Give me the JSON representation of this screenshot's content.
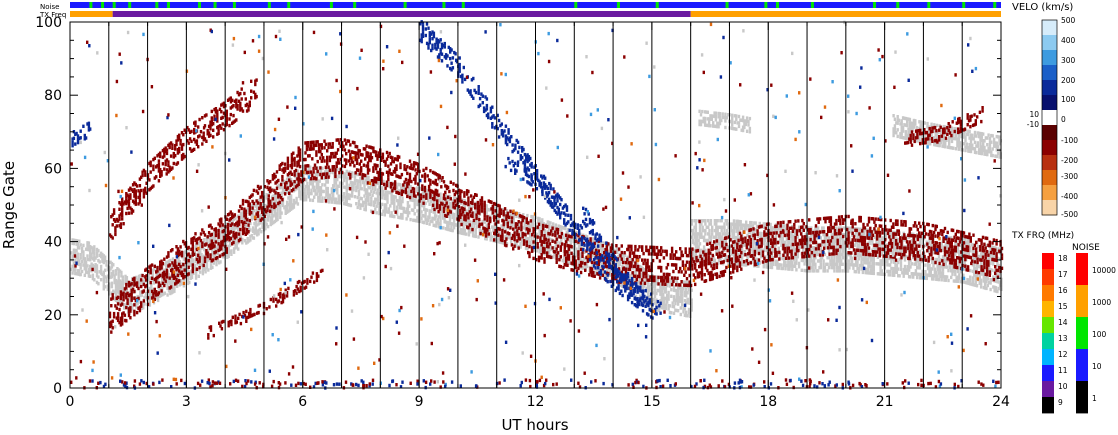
{
  "strips": {
    "noise_label": "Noise",
    "txfreq_label": "TX Freq"
  },
  "chart_data": {
    "type": "heatmap",
    "title": "",
    "xlabel": "UT hours",
    "ylabel": "Range Gate",
    "xlim": [
      0,
      24
    ],
    "ylim": [
      0,
      100
    ],
    "x_ticks": [
      "0",
      "3",
      "6",
      "9",
      "12",
      "15",
      "18",
      "21",
      "24"
    ],
    "y_ticks": [
      "0",
      "20",
      "40",
      "60",
      "80",
      "100"
    ],
    "hour_gridlines": [
      1,
      2,
      3,
      4,
      5,
      6,
      7,
      8,
      9,
      10,
      11,
      12,
      13,
      14,
      15,
      16,
      17,
      18,
      19,
      20,
      21,
      22,
      23
    ],
    "ground_scatter_color": "#c8c8c8",
    "velocity_scale": {
      "title": "VELO (km/s)",
      "ticks": [
        "500",
        "400",
        "300",
        "200",
        "100",
        "10",
        "0",
        "-10",
        "-100",
        "-200",
        "-300",
        "-400",
        "-500"
      ],
      "colors_top_to_bottom": [
        "#d6ecfa",
        "#8ccaf0",
        "#3d9be0",
        "#1a5fc8",
        "#0a2a9a",
        "#08106e",
        "#ffffff",
        "#5a0000",
        "#8b0000",
        "#b83010",
        "#e06a10",
        "#f5a040",
        "#f8d4a8"
      ]
    },
    "txfreq_scale": {
      "title": "TX FRQ (MHz)",
      "ticks": [
        "18",
        "17",
        "16",
        "15",
        "14",
        "13",
        "12",
        "11",
        "10",
        "9"
      ],
      "colors": [
        "#ff0000",
        "#ff3a00",
        "#ff7a00",
        "#ffb400",
        "#66e600",
        "#00d2a0",
        "#00b4ff",
        "#1a1aff",
        "#6a1aa0",
        "#000000"
      ]
    },
    "noise_scale": {
      "title": "NOISE",
      "ticks": [
        "10000",
        "1000",
        "100",
        "10",
        "1"
      ],
      "colors": [
        "#ff0000",
        "#ffa000",
        "#00e600",
        "#1a1aff",
        "#000000"
      ]
    },
    "noise_strip": {
      "base_color": "#1a1aff",
      "green_marks_hours": [
        0.5,
        0.8,
        1.1,
        1.5,
        2.2,
        2.5,
        3.3,
        3.7,
        4.2,
        5.1,
        5.6,
        6.7,
        7.3,
        8.6,
        9.6,
        10.1,
        13.0,
        14.1,
        15.1,
        16.9,
        17.9,
        18.2,
        19.1,
        20.7,
        21.3,
        22.1,
        23.0,
        23.8
      ]
    },
    "txfreq_strip": {
      "segments": [
        {
          "start": 0,
          "end": 1.1,
          "color": "#ffa000"
        },
        {
          "start": 1.1,
          "end": 16.0,
          "color": "#6a1aa0"
        },
        {
          "start": 16.0,
          "end": 24,
          "color": "#ffa000"
        }
      ]
    },
    "ground_scatter_bands": [
      {
        "points": [
          [
            0,
            36
          ],
          [
            0.5,
            35
          ],
          [
            1,
            30
          ],
          [
            1.5,
            25
          ],
          [
            2,
            27
          ],
          [
            3,
            33
          ],
          [
            4,
            40
          ],
          [
            5,
            48
          ],
          [
            6,
            56
          ],
          [
            7,
            55
          ],
          [
            8,
            52
          ],
          [
            9,
            50
          ],
          [
            10,
            47
          ],
          [
            12,
            42
          ],
          [
            14,
            34
          ],
          [
            15,
            26
          ],
          [
            16,
            24
          ]
        ],
        "width": 9
      },
      {
        "points": [
          [
            16,
            40
          ],
          [
            17,
            40
          ],
          [
            18,
            39
          ],
          [
            19,
            38
          ],
          [
            20,
            38
          ],
          [
            21,
            37
          ],
          [
            22,
            36
          ],
          [
            23,
            35
          ],
          [
            24,
            32
          ]
        ],
        "width": 12
      },
      {
        "points": [
          [
            21.2,
            72
          ],
          [
            22,
            70
          ],
          [
            23,
            68
          ],
          [
            24,
            66
          ]
        ],
        "width": 6
      },
      {
        "points": [
          [
            16.2,
            74
          ],
          [
            17,
            73
          ],
          [
            17.5,
            72
          ]
        ],
        "width": 4
      }
    ],
    "velocity_bands": [
      {
        "points": [
          [
            1,
            20
          ],
          [
            2,
            28
          ],
          [
            3,
            36
          ],
          [
            4,
            42
          ],
          [
            5,
            52
          ],
          [
            6,
            62
          ],
          [
            7,
            63
          ],
          [
            8,
            60
          ],
          [
            9,
            56
          ],
          [
            10,
            50
          ],
          [
            11,
            45
          ],
          [
            12,
            40
          ],
          [
            14,
            34
          ],
          [
            16,
            33
          ],
          [
            18,
            40
          ],
          [
            20,
            42
          ],
          [
            22,
            40
          ],
          [
            24,
            35
          ]
        ],
        "width": 10,
        "color": "#8b0000"
      },
      {
        "points": [
          [
            1,
            44
          ],
          [
            2,
            58
          ],
          [
            3,
            68
          ],
          [
            4,
            75
          ],
          [
            4.8,
            82
          ]
        ],
        "width": 8,
        "color": "#8b0000"
      },
      {
        "points": [
          [
            3.5,
            15
          ],
          [
            5,
            22
          ],
          [
            6.5,
            32
          ]
        ],
        "width": 3,
        "color": "#8b0000"
      },
      {
        "points": [
          [
            9,
            98
          ],
          [
            10,
            88
          ],
          [
            11,
            72
          ],
          [
            12,
            58
          ],
          [
            13,
            44
          ],
          [
            13.5,
            36
          ],
          [
            14,
            30
          ],
          [
            15,
            22
          ]
        ],
        "width": 6,
        "color": "#0a2a9a"
      },
      {
        "points": [
          [
            13.2,
            48
          ],
          [
            14,
            34
          ],
          [
            14.6,
            26
          ],
          [
            15.2,
            22
          ]
        ],
        "width": 5,
        "color": "#0a2a9a"
      },
      {
        "points": [
          [
            11.2,
            62
          ],
          [
            12,
            56
          ],
          [
            12.5,
            50
          ]
        ],
        "width": 3,
        "color": "#0a2a9a"
      },
      {
        "points": [
          [
            0,
            68
          ],
          [
            0.5,
            71
          ]
        ],
        "width": 4,
        "color": "#0a2a9a"
      },
      {
        "points": [
          [
            21.5,
            68
          ],
          [
            22.5,
            70
          ],
          [
            23.5,
            75
          ]
        ],
        "width": 4,
        "color": "#8b0000"
      }
    ]
  }
}
